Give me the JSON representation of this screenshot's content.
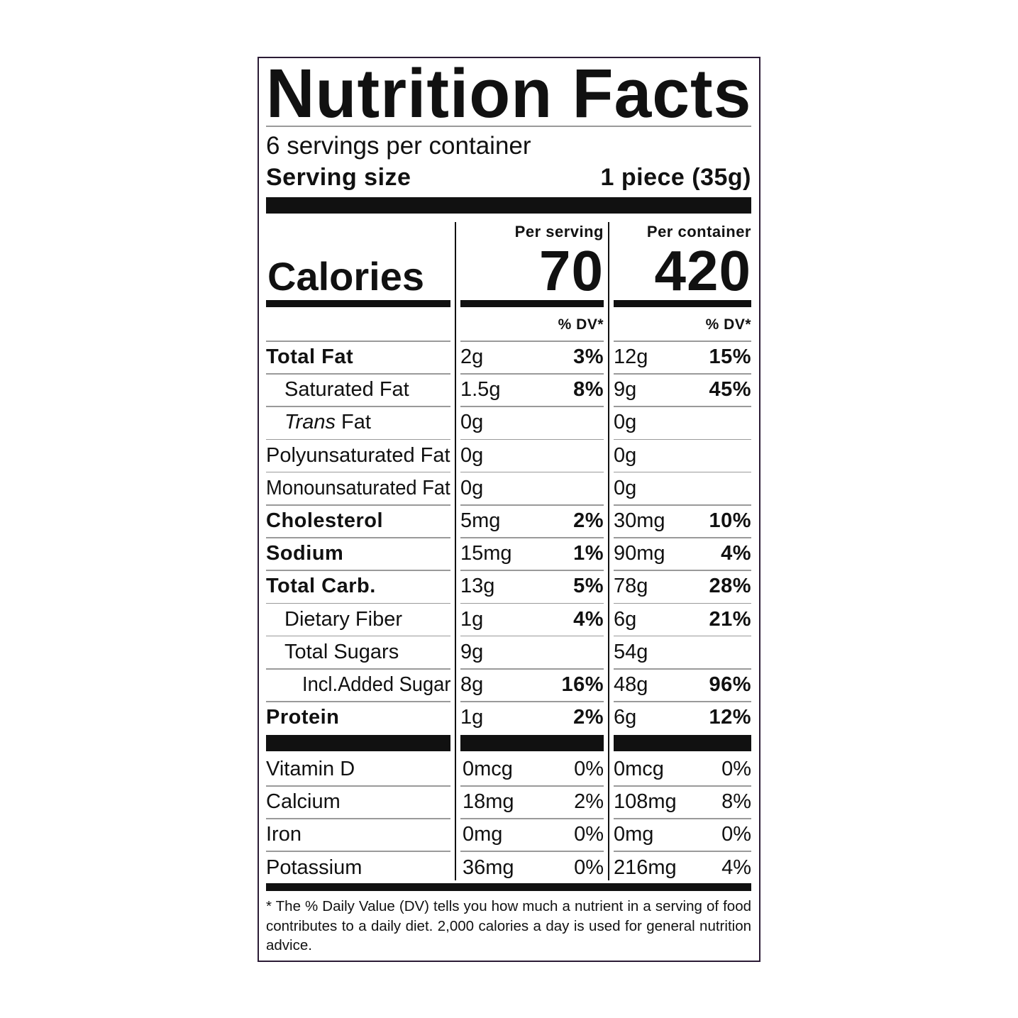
{
  "title": "Nutrition Facts",
  "servings": "6 servings per container",
  "serving_size": {
    "label": "Serving size",
    "value": "1 piece (35g)"
  },
  "columns": [
    "Per serving",
    "Per container"
  ],
  "calories": {
    "label": "Calories",
    "values": [
      "70",
      "420"
    ]
  },
  "dv_header": [
    "% DV*",
    "% DV*"
  ],
  "nutrients": [
    {
      "label": "Total Fat",
      "bold": true,
      "level": 0,
      "cells": [
        {
          "amount": "2g",
          "dv": "3%"
        },
        {
          "amount": "12g",
          "dv": "15%"
        }
      ]
    },
    {
      "label": "Saturated Fat",
      "level": 1,
      "cells": [
        {
          "amount": "1.5g",
          "dv": "8%"
        },
        {
          "amount": "9g",
          "dv": "45%"
        }
      ]
    },
    {
      "italic_label": "Trans",
      "label": "Fat",
      "level": 1,
      "cells": [
        {
          "amount": "0g"
        },
        {
          "amount": "0g"
        }
      ]
    },
    {
      "label": "Polyunsaturated Fat",
      "level": 0,
      "cells": [
        {
          "amount": "0g"
        },
        {
          "amount": "0g"
        }
      ]
    },
    {
      "label": "Monounsaturated Fat",
      "level": 0,
      "cells": [
        {
          "amount": "0g"
        },
        {
          "amount": "0g"
        }
      ]
    },
    {
      "label": "Cholesterol",
      "bold": true,
      "level": 0,
      "cells": [
        {
          "amount": "5mg",
          "dv": "2%"
        },
        {
          "amount": "30mg",
          "dv": "10%"
        }
      ]
    },
    {
      "label": "Sodium",
      "bold": true,
      "level": 0,
      "cells": [
        {
          "amount": "15mg",
          "dv": "1%"
        },
        {
          "amount": "90mg",
          "dv": "4%"
        }
      ]
    },
    {
      "label": "Total Carb.",
      "bold": true,
      "level": 0,
      "cells": [
        {
          "amount": "13g",
          "dv": "5%"
        },
        {
          "amount": "78g",
          "dv": "28%"
        }
      ]
    },
    {
      "label": "Dietary Fiber",
      "level": 1,
      "cells": [
        {
          "amount": "1g",
          "dv": "4%"
        },
        {
          "amount": "6g",
          "dv": "21%"
        }
      ]
    },
    {
      "label": "Total Sugars",
      "level": 1,
      "cells": [
        {
          "amount": "9g"
        },
        {
          "amount": "54g"
        }
      ]
    },
    {
      "label": "Incl.Added Sugar",
      "level": 2,
      "cells": [
        {
          "amount": "8g",
          "dv": "16%"
        },
        {
          "amount": "48g",
          "dv": "96%"
        }
      ]
    },
    {
      "label": "Protein",
      "bold": true,
      "level": 0,
      "cells": [
        {
          "amount": "1g",
          "dv": "2%"
        },
        {
          "amount": "6g",
          "dv": "12%"
        }
      ]
    }
  ],
  "vitamins": [
    {
      "label": "Vitamin D",
      "cells": [
        {
          "amount": "0mcg",
          "dv": "0%"
        },
        {
          "amount": "0mcg",
          "dv": "0%"
        }
      ]
    },
    {
      "label": "Calcium",
      "cells": [
        {
          "amount": "18mg",
          "dv": "2%"
        },
        {
          "amount": "108mg",
          "dv": "8%"
        }
      ]
    },
    {
      "label": "Iron",
      "cells": [
        {
          "amount": "0mg",
          "dv": "0%"
        },
        {
          "amount": "0mg",
          "dv": "0%"
        }
      ]
    },
    {
      "label": "Potassium",
      "cells": [
        {
          "amount": "36mg",
          "dv": "0%"
        },
        {
          "amount": "216mg",
          "dv": "4%"
        }
      ]
    }
  ],
  "footnote": "* The % Daily Value (DV) tells you how much a nutrient in a serving of food contributes to a daily diet. 2,000 calories a day is used for general nutrition advice."
}
